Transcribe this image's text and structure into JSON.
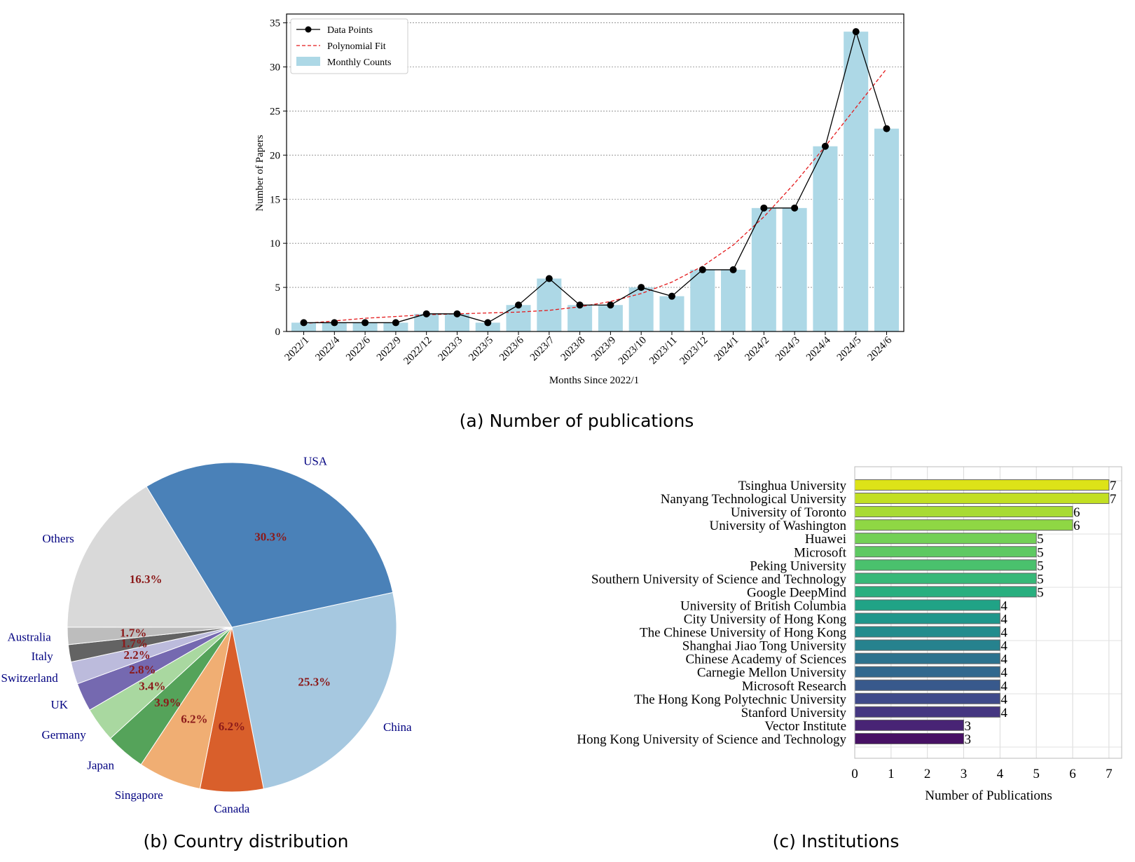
{
  "captions": {
    "a": "(a) Number of publications",
    "b": "(b) Country distribution",
    "c": "(c) Institutions"
  },
  "colors": {
    "bar": "#add8e6",
    "line": "#000000",
    "fit": "#e41a1c",
    "pie_label": "#000080",
    "pct_label": "#8b1a1a",
    "grid": "#888888"
  },
  "chart_data": [
    {
      "id": "a",
      "type": "bar",
      "xlabel": "Months Since 2022/1",
      "ylabel": "Number of Papers",
      "ylim": [
        0,
        36
      ],
      "yticks": [
        0,
        5,
        10,
        15,
        20,
        25,
        30,
        35
      ],
      "grid": true,
      "legend_position": "top-left",
      "categories": [
        "2022/1",
        "2022/4",
        "2022/6",
        "2022/9",
        "2022/12",
        "2023/3",
        "2023/5",
        "2023/6",
        "2023/7",
        "2023/8",
        "2023/9",
        "2023/10",
        "2023/11",
        "2023/12",
        "2024/1",
        "2024/2",
        "2024/3",
        "2024/4",
        "2024/5",
        "2024/6"
      ],
      "series": [
        {
          "name": "Monthly Counts",
          "kind": "bar",
          "values": [
            1,
            1,
            1,
            1,
            2,
            2,
            1,
            3,
            6,
            3,
            3,
            5,
            4,
            7,
            7,
            14,
            14,
            21,
            34,
            23
          ]
        },
        {
          "name": "Data Points",
          "kind": "line-marker",
          "values": [
            1,
            1,
            1,
            1,
            2,
            2,
            1,
            3,
            6,
            3,
            3,
            5,
            4,
            7,
            7,
            14,
            14,
            21,
            34,
            23
          ]
        },
        {
          "name": "Polynomial Fit",
          "kind": "dashed-line",
          "values": [
            0.9,
            1.2,
            1.5,
            1.7,
            1.9,
            2.0,
            2.1,
            2.2,
            2.4,
            2.8,
            3.4,
            4.3,
            5.6,
            7.4,
            9.8,
            13.0,
            16.8,
            21.0,
            25.4,
            29.8
          ]
        }
      ]
    },
    {
      "id": "b",
      "type": "pie",
      "slices": [
        {
          "label": "China",
          "value": 25.3,
          "pct": "25.3%",
          "color": "#a6c8e0"
        },
        {
          "label": "Canada",
          "value": 6.2,
          "pct": "6.2%",
          "color": "#d95f2b"
        },
        {
          "label": "Singapore",
          "value": 6.2,
          "pct": "6.2%",
          "color": "#f0ae73"
        },
        {
          "label": "Japan",
          "value": 3.9,
          "pct": "3.9%",
          "color": "#55a35a"
        },
        {
          "label": "Germany",
          "value": 3.4,
          "pct": "3.4%",
          "color": "#a9d8a0"
        },
        {
          "label": "UK",
          "value": 2.8,
          "pct": "2.8%",
          "color": "#7569b0"
        },
        {
          "label": "Switzerland",
          "value": 2.2,
          "pct": "2.2%",
          "color": "#bcbbdc"
        },
        {
          "label": "Italy",
          "value": 1.7,
          "pct": "1.7%",
          "color": "#636363"
        },
        {
          "label": "Australia",
          "value": 1.7,
          "pct": "1.7%",
          "color": "#bdbdbd"
        },
        {
          "label": "Others",
          "value": 16.3,
          "pct": "16.3%",
          "color": "#d9d9d9"
        },
        {
          "label": "USA",
          "value": 30.3,
          "pct": "30.3%",
          "color": "#4a81b8"
        }
      ]
    },
    {
      "id": "c",
      "type": "bar",
      "orientation": "horizontal",
      "xlabel": "Number of Publications",
      "xlim": [
        0,
        7.35
      ],
      "xticks": [
        0,
        1,
        2,
        3,
        4,
        5,
        6,
        7
      ],
      "grid": true,
      "categories": [
        "Tsinghua University",
        "Nanyang Technological University",
        "University of Toronto",
        "University of Washington",
        "Huawei",
        "Microsoft",
        "Peking University",
        "Southern University of Science and Technology",
        "Google DeepMind",
        "University of British Columbia",
        "City University of Hong Kong",
        "The Chinese University of Hong Kong",
        "Shanghai Jiao Tong University",
        "Chinese Academy of Sciences",
        "Carnegie Mellon University",
        "Microsoft Research",
        "The Hong Kong Polytechnic University",
        "Stanford University",
        "Vector Institute",
        "Hong Kong University of Science and Technology"
      ],
      "values": [
        7,
        7,
        6,
        6,
        5,
        5,
        5,
        5,
        5,
        4,
        4,
        4,
        4,
        4,
        4,
        4,
        4,
        4,
        3,
        3
      ],
      "colors": [
        "#dde318",
        "#c2df23",
        "#a8db34",
        "#8fd744",
        "#73d056",
        "#5ec962",
        "#4ac16d",
        "#37b878",
        "#29af7f",
        "#20a386",
        "#1f968b",
        "#228c8d",
        "#26828e",
        "#2c728e",
        "#31688e",
        "#38598c",
        "#3f4a8a",
        "#453781",
        "#482475",
        "#471164"
      ]
    }
  ]
}
